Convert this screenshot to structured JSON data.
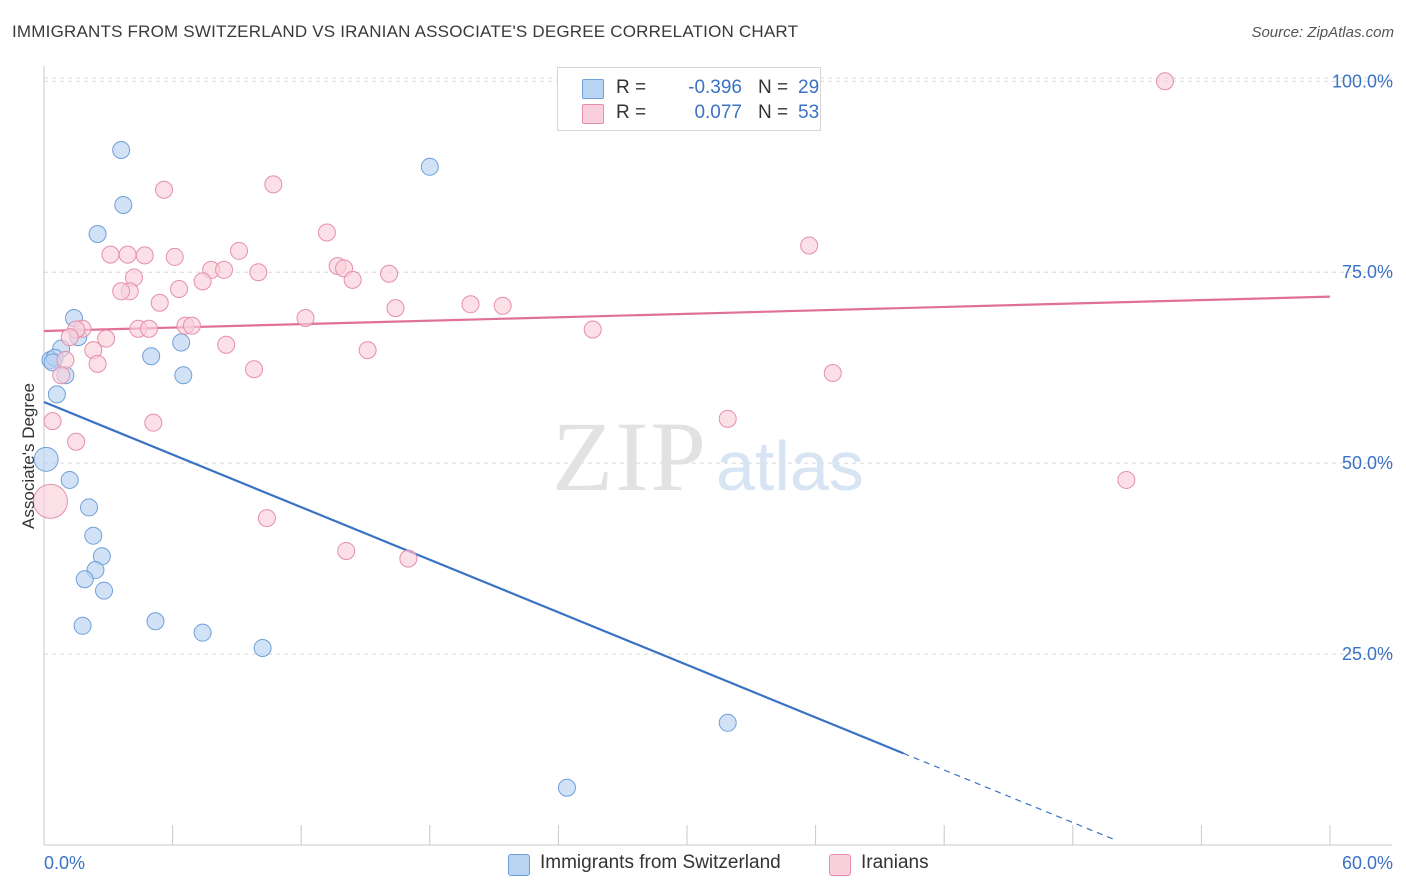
{
  "title": "IMMIGRANTS FROM SWITZERLAND VS IRANIAN ASSOCIATE'S DEGREE CORRELATION CHART",
  "source": "Source: ZipAtlas.com",
  "watermark": {
    "zip": "ZIP",
    "atlas": "atlas"
  },
  "legend_top": {
    "rows": [
      {
        "r_label": "R =",
        "r_value": "-0.396",
        "n_label": "N =",
        "n_value": "29",
        "color": "#a9c8f0",
        "border": "#6f9fd8"
      },
      {
        "r_label": "R =",
        "r_value": "0.077",
        "n_label": "N =",
        "n_value": "53",
        "color": "#f7c6d5",
        "border": "#e58fab"
      }
    ]
  },
  "legend_bottom": [
    {
      "label": "Immigrants from Switzerland",
      "color": "#b9d3f2",
      "border": "#6f9fd8"
    },
    {
      "label": "Iranians",
      "color": "#f9cfdb",
      "border": "#e58fab"
    }
  ],
  "chart_data": {
    "type": "scatter",
    "title": "IMMIGRANTS FROM SWITZERLAND VS IRANIAN ASSOCIATE'S DEGREE CORRELATION CHART",
    "xlabel": "",
    "ylabel": "Associate's Degree",
    "xlim": [
      0,
      60
    ],
    "ylim": [
      0,
      102
    ],
    "x_tick_labels": [
      "0.0%",
      "60.0%"
    ],
    "y_ticks": [
      25,
      50,
      75,
      100
    ],
    "y_tick_labels": [
      "25.0%",
      "50.0%",
      "75.0%",
      "100.0%"
    ],
    "grid": true,
    "series": [
      {
        "name": "Immigrants from Switzerland",
        "color": "#6f9fd8",
        "fill": "#b9d3f2",
        "line_color": "#3a72c4",
        "trend": {
          "x0": 0,
          "y0": 58.0,
          "x1": 40.1,
          "y1": 12.0,
          "dash_to_x": 50
        },
        "points": [
          [
            3.6,
            91.0
          ],
          [
            3.7,
            83.8
          ],
          [
            2.5,
            80.0
          ],
          [
            18.0,
            88.8
          ],
          [
            1.4,
            69.0
          ],
          [
            1.6,
            66.5
          ],
          [
            0.8,
            65.0
          ],
          [
            0.3,
            63.5
          ],
          [
            0.5,
            63.8
          ],
          [
            1.0,
            61.5
          ],
          [
            5.0,
            64.0
          ],
          [
            6.5,
            61.5
          ],
          [
            6.4,
            65.8
          ],
          [
            0.6,
            59.0
          ],
          [
            0.1,
            50.5
          ],
          [
            1.2,
            47.8
          ],
          [
            2.1,
            44.2
          ],
          [
            2.3,
            40.5
          ],
          [
            2.7,
            37.8
          ],
          [
            2.4,
            36.0
          ],
          [
            1.9,
            34.8
          ],
          [
            2.8,
            33.3
          ],
          [
            1.8,
            28.7
          ],
          [
            5.2,
            29.3
          ],
          [
            7.4,
            27.8
          ],
          [
            10.2,
            25.8
          ],
          [
            31.9,
            16.0
          ],
          [
            24.4,
            7.5
          ],
          [
            0.4,
            63.2
          ]
        ]
      },
      {
        "name": "Iranians",
        "color": "#e58fab",
        "fill": "#f9cfdb",
        "line_color": "#e07098",
        "trend": {
          "x0": 0,
          "y0": 67.3,
          "x1": 60,
          "y1": 71.8
        },
        "points": [
          [
            52.3,
            100.0
          ],
          [
            5.6,
            85.8
          ],
          [
            10.7,
            86.5
          ],
          [
            13.2,
            80.2
          ],
          [
            35.7,
            78.5
          ],
          [
            3.1,
            77.3
          ],
          [
            3.9,
            77.3
          ],
          [
            4.7,
            77.2
          ],
          [
            6.1,
            77.0
          ],
          [
            9.1,
            77.8
          ],
          [
            7.8,
            75.3
          ],
          [
            8.4,
            75.3
          ],
          [
            10.0,
            75.0
          ],
          [
            13.7,
            75.8
          ],
          [
            14.0,
            75.5
          ],
          [
            16.1,
            74.8
          ],
          [
            4.2,
            74.3
          ],
          [
            7.4,
            73.8
          ],
          [
            14.4,
            74.0
          ],
          [
            6.3,
            72.8
          ],
          [
            4.0,
            72.5
          ],
          [
            3.6,
            72.5
          ],
          [
            5.4,
            71.0
          ],
          [
            19.9,
            70.8
          ],
          [
            21.4,
            70.6
          ],
          [
            16.4,
            70.3
          ],
          [
            12.2,
            69.0
          ],
          [
            1.8,
            67.6
          ],
          [
            1.5,
            67.5
          ],
          [
            4.4,
            67.6
          ],
          [
            4.9,
            67.6
          ],
          [
            6.6,
            68.0
          ],
          [
            6.9,
            68.0
          ],
          [
            2.9,
            66.3
          ],
          [
            1.2,
            66.5
          ],
          [
            25.6,
            67.5
          ],
          [
            8.5,
            65.5
          ],
          [
            2.3,
            64.8
          ],
          [
            15.1,
            64.8
          ],
          [
            1.0,
            63.5
          ],
          [
            2.5,
            63.0
          ],
          [
            9.8,
            62.3
          ],
          [
            0.8,
            61.5
          ],
          [
            36.8,
            61.8
          ],
          [
            0.4,
            55.5
          ],
          [
            5.1,
            55.3
          ],
          [
            31.9,
            55.8
          ],
          [
            1.5,
            52.8
          ],
          [
            50.5,
            47.8
          ],
          [
            10.4,
            42.8
          ],
          [
            14.1,
            38.5
          ],
          [
            17.0,
            37.5
          ],
          [
            0.3,
            45.0
          ]
        ]
      }
    ]
  }
}
